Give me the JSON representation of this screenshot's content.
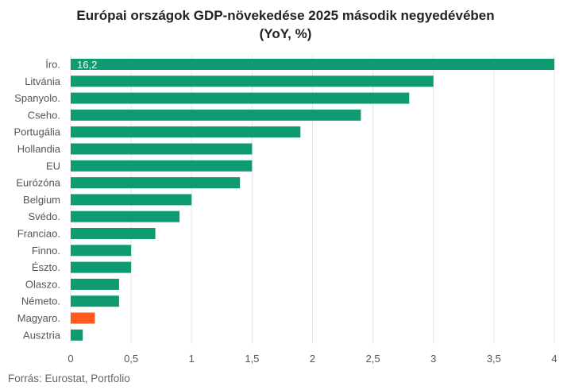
{
  "chart_data": {
    "type": "bar",
    "orientation": "horizontal",
    "title": "Európai országok GDP-növekedése 2025 második negyedévében",
    "subtitle": "(YoY, %)",
    "categories": [
      "Íro.",
      "Litvánia",
      "Spanyolo.",
      "Cseho.",
      "Portugália",
      "Hollandia",
      "EU",
      "Eurózóna",
      "Belgium",
      "Svédo.",
      "Franciao.",
      "Finno.",
      "Észto.",
      "Olaszo.",
      "Németo.",
      "Magyaro.",
      "Ausztria"
    ],
    "values": [
      16.2,
      3.0,
      2.8,
      2.4,
      1.9,
      1.5,
      1.5,
      1.4,
      1.0,
      0.9,
      0.7,
      0.5,
      0.5,
      0.4,
      0.4,
      0.2,
      0.1
    ],
    "data_labels": [
      "16,2",
      "",
      "",
      "",
      "",
      "",
      "",
      "",
      "",
      "",
      "",
      "",
      "",
      "",
      "",
      "",
      ""
    ],
    "highlight_category": "Magyaro.",
    "xlim": [
      0,
      4
    ],
    "x_ticks": [
      0,
      0.5,
      1,
      1.5,
      2,
      2.5,
      3,
      3.5,
      4
    ],
    "x_tick_labels": [
      "0",
      "0,5",
      "1",
      "1,5",
      "2",
      "2,5",
      "3",
      "3,5",
      "4"
    ],
    "grid": "vertical",
    "colors": {
      "bar": "#0f9b72",
      "highlight": "#ff5a1f"
    }
  },
  "footer": {
    "source": "Forrás: Eurostat, Portfolio"
  }
}
